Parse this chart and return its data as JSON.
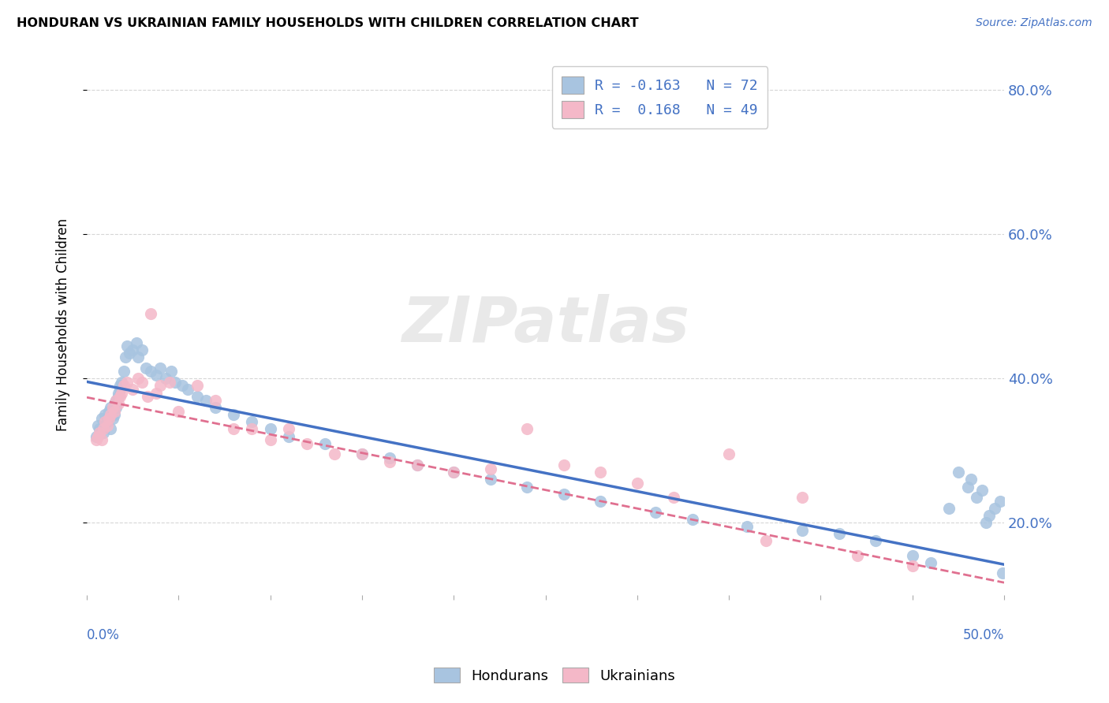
{
  "title": "HONDURAN VS UKRAINIAN FAMILY HOUSEHOLDS WITH CHILDREN CORRELATION CHART",
  "source": "Source: ZipAtlas.com",
  "ylabel": "Family Households with Children",
  "xlim": [
    0.0,
    0.5
  ],
  "ylim": [
    0.1,
    0.85
  ],
  "yticks": [
    0.2,
    0.4,
    0.6,
    0.8
  ],
  "ytick_labels": [
    "20.0%",
    "40.0%",
    "60.0%",
    "80.0%"
  ],
  "xtick_left_label": "0.0%",
  "xtick_right_label": "50.0%",
  "honduran_R": -0.163,
  "honduran_N": 72,
  "ukrainian_R": 0.168,
  "ukrainian_N": 49,
  "honduran_color": "#a8c4e0",
  "honduran_line_color": "#4472c4",
  "ukrainian_color": "#f4b8c8",
  "ukrainian_line_color": "#e07090",
  "watermark": "ZIPatlas",
  "background_color": "#ffffff",
  "honduran_x": [
    0.004,
    0.005,
    0.006,
    0.007,
    0.007,
    0.008,
    0.008,
    0.009,
    0.009,
    0.01,
    0.01,
    0.011,
    0.011,
    0.012,
    0.012,
    0.013,
    0.013,
    0.014,
    0.015,
    0.016,
    0.016,
    0.017,
    0.018,
    0.019,
    0.02,
    0.021,
    0.022,
    0.023,
    0.025,
    0.027,
    0.028,
    0.03,
    0.032,
    0.035,
    0.038,
    0.04,
    0.042,
    0.045,
    0.048,
    0.05,
    0.055,
    0.06,
    0.065,
    0.07,
    0.08,
    0.09,
    0.1,
    0.11,
    0.12,
    0.13,
    0.14,
    0.15,
    0.16,
    0.18,
    0.2,
    0.22,
    0.24,
    0.26,
    0.28,
    0.3,
    0.32,
    0.34,
    0.36,
    0.38,
    0.4,
    0.41,
    0.43,
    0.44,
    0.45,
    0.46,
    0.465,
    0.47
  ],
  "honduran_y": [
    0.32,
    0.315,
    0.33,
    0.335,
    0.31,
    0.34,
    0.345,
    0.325,
    0.35,
    0.34,
    0.355,
    0.33,
    0.36,
    0.345,
    0.365,
    0.35,
    0.37,
    0.375,
    0.38,
    0.39,
    0.385,
    0.395,
    0.4,
    0.41,
    0.42,
    0.435,
    0.445,
    0.43,
    0.44,
    0.45,
    0.43,
    0.445,
    0.42,
    0.415,
    0.41,
    0.405,
    0.415,
    0.4,
    0.41,
    0.4,
    0.395,
    0.39,
    0.385,
    0.38,
    0.375,
    0.37,
    0.36,
    0.355,
    0.345,
    0.34,
    0.33,
    0.325,
    0.315,
    0.305,
    0.295,
    0.285,
    0.275,
    0.265,
    0.255,
    0.245,
    0.235,
    0.225,
    0.215,
    0.205,
    0.195,
    0.185,
    0.175,
    0.165,
    0.155,
    0.15,
    0.145,
    0.13
  ],
  "ukrainian_x": [
    0.004,
    0.005,
    0.006,
    0.007,
    0.008,
    0.009,
    0.01,
    0.011,
    0.012,
    0.013,
    0.014,
    0.015,
    0.016,
    0.017,
    0.018,
    0.019,
    0.02,
    0.022,
    0.025,
    0.028,
    0.03,
    0.033,
    0.035,
    0.038,
    0.04,
    0.045,
    0.05,
    0.06,
    0.07,
    0.08,
    0.09,
    0.1,
    0.11,
    0.12,
    0.13,
    0.14,
    0.16,
    0.18,
    0.2,
    0.22,
    0.24,
    0.26,
    0.28,
    0.3,
    0.32,
    0.34,
    0.36,
    0.38,
    0.4
  ],
  "ukrainian_y": [
    0.31,
    0.305,
    0.32,
    0.325,
    0.315,
    0.33,
    0.34,
    0.335,
    0.345,
    0.35,
    0.36,
    0.355,
    0.37,
    0.365,
    0.375,
    0.38,
    0.39,
    0.395,
    0.385,
    0.4,
    0.395,
    0.375,
    0.385,
    0.38,
    0.39,
    0.395,
    0.4,
    0.385,
    0.375,
    0.37,
    0.33,
    0.325,
    0.315,
    0.31,
    0.3,
    0.295,
    0.285,
    0.28,
    0.27,
    0.255,
    0.245,
    0.235,
    0.225,
    0.215,
    0.205,
    0.195,
    0.185,
    0.175,
    0.165
  ],
  "honduran_scatter_x": [
    0.005,
    0.006,
    0.007,
    0.008,
    0.009,
    0.01,
    0.011,
    0.012,
    0.013,
    0.013,
    0.014,
    0.015,
    0.015,
    0.016,
    0.016,
    0.017,
    0.017,
    0.018,
    0.018,
    0.019,
    0.02,
    0.021,
    0.022,
    0.023,
    0.025,
    0.027,
    0.028,
    0.03,
    0.032,
    0.035,
    0.038,
    0.04,
    0.043,
    0.046,
    0.048,
    0.052,
    0.055,
    0.06,
    0.065,
    0.07,
    0.08,
    0.09,
    0.1,
    0.11,
    0.13,
    0.15,
    0.165,
    0.18,
    0.2,
    0.22,
    0.24,
    0.26,
    0.28,
    0.31,
    0.33,
    0.36,
    0.39,
    0.41,
    0.43,
    0.45,
    0.46,
    0.47,
    0.475,
    0.48,
    0.482,
    0.485,
    0.488,
    0.49,
    0.492,
    0.495,
    0.498,
    0.499
  ],
  "honduran_scatter_y": [
    0.32,
    0.335,
    0.33,
    0.345,
    0.325,
    0.35,
    0.34,
    0.355,
    0.33,
    0.36,
    0.345,
    0.365,
    0.35,
    0.37,
    0.36,
    0.375,
    0.38,
    0.385,
    0.39,
    0.395,
    0.41,
    0.43,
    0.445,
    0.435,
    0.44,
    0.45,
    0.43,
    0.44,
    0.415,
    0.41,
    0.405,
    0.415,
    0.4,
    0.41,
    0.395,
    0.39,
    0.385,
    0.375,
    0.37,
    0.36,
    0.35,
    0.34,
    0.33,
    0.32,
    0.31,
    0.295,
    0.29,
    0.28,
    0.27,
    0.26,
    0.25,
    0.24,
    0.23,
    0.215,
    0.205,
    0.195,
    0.19,
    0.185,
    0.175,
    0.155,
    0.145,
    0.22,
    0.27,
    0.25,
    0.26,
    0.235,
    0.245,
    0.2,
    0.21,
    0.22,
    0.23,
    0.13
  ],
  "ukrainian_scatter_x": [
    0.005,
    0.006,
    0.007,
    0.008,
    0.009,
    0.01,
    0.011,
    0.012,
    0.013,
    0.014,
    0.015,
    0.016,
    0.017,
    0.018,
    0.019,
    0.02,
    0.022,
    0.025,
    0.028,
    0.03,
    0.033,
    0.035,
    0.038,
    0.04,
    0.045,
    0.05,
    0.06,
    0.07,
    0.08,
    0.09,
    0.1,
    0.11,
    0.12,
    0.135,
    0.15,
    0.165,
    0.18,
    0.2,
    0.22,
    0.24,
    0.26,
    0.28,
    0.3,
    0.32,
    0.35,
    0.37,
    0.39,
    0.42,
    0.45
  ],
  "ukrainian_scatter_y": [
    0.315,
    0.32,
    0.325,
    0.315,
    0.33,
    0.34,
    0.335,
    0.345,
    0.35,
    0.36,
    0.355,
    0.37,
    0.365,
    0.375,
    0.38,
    0.39,
    0.395,
    0.385,
    0.4,
    0.395,
    0.375,
    0.49,
    0.38,
    0.39,
    0.395,
    0.355,
    0.39,
    0.37,
    0.33,
    0.33,
    0.315,
    0.33,
    0.31,
    0.295,
    0.295,
    0.285,
    0.28,
    0.27,
    0.275,
    0.33,
    0.28,
    0.27,
    0.255,
    0.235,
    0.295,
    0.175,
    0.235,
    0.155,
    0.14
  ]
}
